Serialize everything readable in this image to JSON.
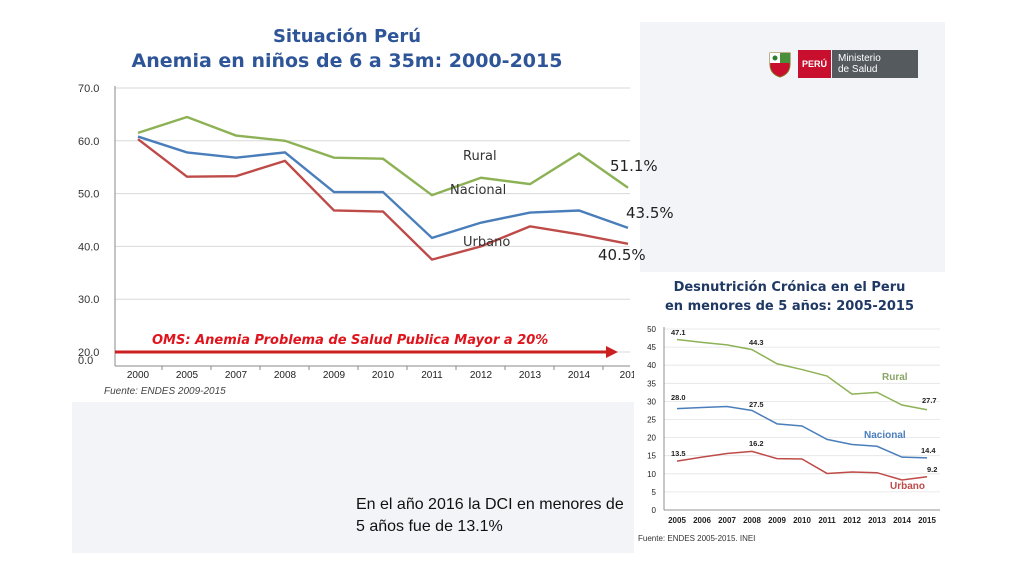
{
  "chart_data": [
    {
      "type": "line",
      "title": "Situación Perú",
      "subtitle": "Anemia en niños de 6 a 35m: 2000-2015",
      "categories": [
        "2000",
        "2005",
        "2007",
        "2008",
        "2009",
        "2010",
        "2011",
        "2012",
        "2013",
        "2014",
        "201"
      ],
      "series": [
        {
          "name": "Rural",
          "color": "#8db255",
          "values": [
            61.5,
            64.5,
            61.0,
            60.0,
            56.8,
            56.6,
            49.7,
            53.0,
            51.8,
            57.6,
            51.1
          ]
        },
        {
          "name": "Nacional",
          "color": "#4a7ebb",
          "values": [
            60.8,
            57.8,
            56.8,
            57.8,
            50.3,
            50.3,
            41.6,
            44.5,
            46.4,
            46.8,
            43.5
          ]
        },
        {
          "name": "Urbano",
          "color": "#be4b48",
          "values": [
            60.3,
            53.2,
            53.3,
            56.2,
            46.8,
            46.6,
            37.5,
            40.0,
            43.8,
            42.3,
            40.5
          ]
        }
      ],
      "end_labels": [
        "51.1%",
        "43.5%",
        "40.5%"
      ],
      "yticks": [
        "70.0",
        "60.0",
        "50.0",
        "40.0",
        "30.0",
        "20.0",
        "0.0"
      ],
      "ylim": [
        0,
        70
      ],
      "reference_line": {
        "value": 20,
        "label": "OMS: Anemia Problema de Salud Publica Mayor a 20%"
      },
      "source": "Fuente: ENDES 2009-2015"
    },
    {
      "type": "line",
      "title": "Desnutrición Crónica en el Peru",
      "subtitle": "en menores de 5 años: 2005-2015",
      "categories": [
        "2005",
        "2006",
        "2007",
        "2008",
        "2009",
        "2010",
        "2011",
        "2012",
        "2013",
        "2014",
        "2015"
      ],
      "series": [
        {
          "name": "Rural",
          "color": "#8db255",
          "values": [
            47.1,
            46.3,
            45.6,
            44.3,
            40.4,
            38.8,
            37.0,
            32.0,
            32.5,
            29.0,
            27.7
          ]
        },
        {
          "name": "Nacional",
          "color": "#4a7ebb",
          "values": [
            28.0,
            28.3,
            28.6,
            27.5,
            23.8,
            23.2,
            19.5,
            18.1,
            17.6,
            14.6,
            14.4
          ]
        },
        {
          "name": "Urbano",
          "color": "#be4b48",
          "values": [
            13.5,
            14.6,
            15.6,
            16.2,
            14.2,
            14.1,
            10.1,
            10.5,
            10.3,
            8.3,
            9.2
          ]
        }
      ],
      "data_labels": [
        "47.1",
        "44.3",
        "27.7",
        "28.0",
        "27.5",
        "14.4",
        "13.5",
        "16.2",
        "9.2"
      ],
      "yticks": [
        "0",
        "5",
        "10",
        "15",
        "20",
        "25",
        "30",
        "35",
        "40",
        "45",
        "50"
      ],
      "ylim": [
        0,
        50
      ],
      "source": "Fuente: ENDES 2005-2015.  INEI"
    }
  ],
  "logo": {
    "country": "PERÚ",
    "ministry_line1": "Ministerio",
    "ministry_line2": "de Salud"
  },
  "note": "En el año 2016 la DCI en menores de 5 años fue de 13.1%",
  "colors": {
    "title_blue": "#2e5597",
    "rural": "#8db255",
    "nacional": "#4a7ebb",
    "urbano": "#be4b48",
    "oms_red": "#e0141c"
  }
}
